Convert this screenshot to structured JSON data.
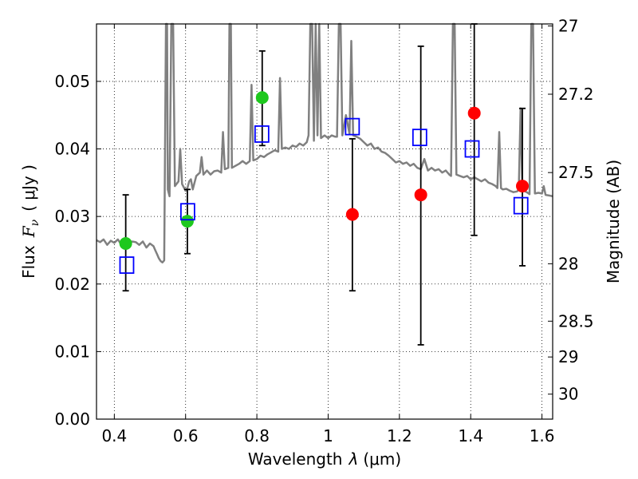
{
  "chart_data": {
    "type": "scatter",
    "title": "",
    "xlabel_parts": {
      "name": "Wavelength",
      "symbol": "λ",
      "unit": "(μm)"
    },
    "ylabel_parts": {
      "name": "Flux",
      "symbol": "F",
      "subscript": "ν",
      "unit": "( μJy )"
    },
    "y2label": "Magnitude (AB)",
    "xlim": [
      0.35,
      1.63
    ],
    "ylim": [
      0.0,
      0.0585
    ],
    "grid": true,
    "x_ticks": [
      {
        "value": 0.4,
        "label": "0.4"
      },
      {
        "value": 0.6,
        "label": "0.6"
      },
      {
        "value": 0.8,
        "label": "0.8"
      },
      {
        "value": 1.0,
        "label": "1"
      },
      {
        "value": 1.2,
        "label": "1.2"
      },
      {
        "value": 1.4,
        "label": "1.4"
      },
      {
        "value": 1.6,
        "label": "1.6"
      }
    ],
    "y_ticks": [
      {
        "value": 0.0,
        "label": "0.00"
      },
      {
        "value": 0.01,
        "label": "0.01"
      },
      {
        "value": 0.02,
        "label": "0.02"
      },
      {
        "value": 0.03,
        "label": "0.03"
      },
      {
        "value": 0.04,
        "label": "0.04"
      },
      {
        "value": 0.05,
        "label": "0.05"
      }
    ],
    "y2_ticks": [
      {
        "label": "27",
        "flux": 0.0582
      },
      {
        "label": "27.2",
        "flux": 0.0481
      },
      {
        "label": "27.5",
        "flux": 0.0365
      },
      {
        "label": "28",
        "flux": 0.023
      },
      {
        "label": "28.5",
        "flux": 0.0145
      },
      {
        "label": "29",
        "flux": 0.0092
      },
      {
        "label": "30",
        "flux": 0.0037
      }
    ],
    "series": [
      {
        "name": "model spectrum",
        "kind": "line",
        "color": "#808080",
        "points": [
          [
            0.35,
            0.0265
          ],
          [
            0.36,
            0.0262
          ],
          [
            0.37,
            0.0266
          ],
          [
            0.38,
            0.0258
          ],
          [
            0.39,
            0.0264
          ],
          [
            0.4,
            0.0261
          ],
          [
            0.41,
            0.0266
          ],
          [
            0.42,
            0.0258
          ],
          [
            0.43,
            0.0262
          ],
          [
            0.44,
            0.0259
          ],
          [
            0.45,
            0.0263
          ],
          [
            0.46,
            0.0262
          ],
          [
            0.47,
            0.0258
          ],
          [
            0.48,
            0.0263
          ],
          [
            0.49,
            0.0254
          ],
          [
            0.5,
            0.026
          ],
          [
            0.51,
            0.0256
          ],
          [
            0.515,
            0.025
          ],
          [
            0.52,
            0.0244
          ],
          [
            0.525,
            0.0238
          ],
          [
            0.53,
            0.0234
          ],
          [
            0.535,
            0.0232
          ],
          [
            0.54,
            0.0235
          ],
          [
            0.545,
            0.0585
          ],
          [
            0.548,
            0.0585
          ],
          [
            0.55,
            0.034
          ],
          [
            0.555,
            0.033
          ],
          [
            0.56,
            0.0585
          ],
          [
            0.565,
            0.0585
          ],
          [
            0.57,
            0.0345
          ],
          [
            0.58,
            0.0352
          ],
          [
            0.585,
            0.04
          ],
          [
            0.59,
            0.0348
          ],
          [
            0.6,
            0.0338
          ],
          [
            0.605,
            0.0342
          ],
          [
            0.61,
            0.0352
          ],
          [
            0.615,
            0.0355
          ],
          [
            0.62,
            0.034
          ],
          [
            0.63,
            0.036
          ],
          [
            0.64,
            0.0365
          ],
          [
            0.645,
            0.0388
          ],
          [
            0.65,
            0.0362
          ],
          [
            0.66,
            0.0368
          ],
          [
            0.67,
            0.0362
          ],
          [
            0.68,
            0.0367
          ],
          [
            0.69,
            0.0368
          ],
          [
            0.7,
            0.0365
          ],
          [
            0.705,
            0.0425
          ],
          [
            0.71,
            0.037
          ],
          [
            0.72,
            0.0372
          ],
          [
            0.723,
            0.0585
          ],
          [
            0.727,
            0.0585
          ],
          [
            0.73,
            0.0372
          ],
          [
            0.74,
            0.0375
          ],
          [
            0.75,
            0.0378
          ],
          [
            0.76,
            0.0382
          ],
          [
            0.77,
            0.0378
          ],
          [
            0.78,
            0.0382
          ],
          [
            0.785,
            0.0495
          ],
          [
            0.79,
            0.0383
          ],
          [
            0.8,
            0.0385
          ],
          [
            0.81,
            0.039
          ],
          [
            0.82,
            0.0388
          ],
          [
            0.83,
            0.0392
          ],
          [
            0.84,
            0.0395
          ],
          [
            0.85,
            0.0398
          ],
          [
            0.86,
            0.0396
          ],
          [
            0.865,
            0.0505
          ],
          [
            0.87,
            0.04
          ],
          [
            0.88,
            0.0402
          ],
          [
            0.89,
            0.04
          ],
          [
            0.9,
            0.0405
          ],
          [
            0.91,
            0.0403
          ],
          [
            0.92,
            0.0408
          ],
          [
            0.93,
            0.0405
          ],
          [
            0.94,
            0.041
          ],
          [
            0.945,
            0.042
          ],
          [
            0.95,
            0.0585
          ],
          [
            0.955,
            0.0585
          ],
          [
            0.96,
            0.0412
          ],
          [
            0.965,
            0.0585
          ],
          [
            0.97,
            0.042
          ],
          [
            0.975,
            0.0585
          ],
          [
            0.98,
            0.0416
          ],
          [
            0.99,
            0.042
          ],
          [
            1.0,
            0.0416
          ],
          [
            1.01,
            0.042
          ],
          [
            1.02,
            0.0418
          ],
          [
            1.025,
            0.0418
          ],
          [
            1.03,
            0.0585
          ],
          [
            1.035,
            0.0585
          ],
          [
            1.04,
            0.042
          ],
          [
            1.05,
            0.045
          ],
          [
            1.06,
            0.0422
          ],
          [
            1.065,
            0.056
          ],
          [
            1.07,
            0.042
          ],
          [
            1.08,
            0.0418
          ],
          [
            1.09,
            0.0415
          ],
          [
            1.1,
            0.041
          ],
          [
            1.11,
            0.0405
          ],
          [
            1.12,
            0.0408
          ],
          [
            1.13,
            0.04
          ],
          [
            1.14,
            0.0402
          ],
          [
            1.15,
            0.0396
          ],
          [
            1.16,
            0.0394
          ],
          [
            1.17,
            0.039
          ],
          [
            1.18,
            0.0385
          ],
          [
            1.19,
            0.038
          ],
          [
            1.2,
            0.0382
          ],
          [
            1.21,
            0.0378
          ],
          [
            1.22,
            0.038
          ],
          [
            1.23,
            0.0375
          ],
          [
            1.24,
            0.0378
          ],
          [
            1.25,
            0.0372
          ],
          [
            1.26,
            0.037
          ],
          [
            1.27,
            0.0385
          ],
          [
            1.28,
            0.0368
          ],
          [
            1.29,
            0.0372
          ],
          [
            1.3,
            0.0368
          ],
          [
            1.31,
            0.037
          ],
          [
            1.32,
            0.0365
          ],
          [
            1.33,
            0.0368
          ],
          [
            1.34,
            0.0362
          ],
          [
            1.345,
            0.036
          ],
          [
            1.35,
            0.0585
          ],
          [
            1.355,
            0.0585
          ],
          [
            1.36,
            0.0362
          ],
          [
            1.37,
            0.036
          ],
          [
            1.38,
            0.0358
          ],
          [
            1.39,
            0.036
          ],
          [
            1.4,
            0.0355
          ],
          [
            1.41,
            0.0358
          ],
          [
            1.42,
            0.0355
          ],
          [
            1.43,
            0.0352
          ],
          [
            1.44,
            0.0355
          ],
          [
            1.45,
            0.035
          ],
          [
            1.46,
            0.0348
          ],
          [
            1.47,
            0.0345
          ],
          [
            1.475,
            0.0342
          ],
          [
            1.48,
            0.0425
          ],
          [
            1.485,
            0.0342
          ],
          [
            1.49,
            0.034
          ],
          [
            1.5,
            0.0341
          ],
          [
            1.51,
            0.0338
          ],
          [
            1.52,
            0.0336
          ],
          [
            1.53,
            0.0337
          ],
          [
            1.535,
            0.034
          ],
          [
            1.54,
            0.046
          ],
          [
            1.545,
            0.034
          ],
          [
            1.55,
            0.0338
          ],
          [
            1.56,
            0.0335
          ],
          [
            1.565,
            0.0333
          ],
          [
            1.57,
            0.0585
          ],
          [
            1.575,
            0.0585
          ],
          [
            1.58,
            0.0334
          ],
          [
            1.59,
            0.0335
          ],
          [
            1.6,
            0.0334
          ],
          [
            1.605,
            0.0345
          ],
          [
            1.61,
            0.0332
          ],
          [
            1.62,
            0.0331
          ],
          [
            1.63,
            0.033
          ]
        ]
      },
      {
        "name": "green points",
        "kind": "circle",
        "color": "#1ec81e",
        "points": [
          [
            0.432,
            0.026
          ],
          [
            0.605,
            0.0293
          ],
          [
            0.815,
            0.0476
          ]
        ],
        "yerr": [
          [
            0.019,
            0.0332
          ],
          [
            0.0245,
            0.034
          ],
          [
            0.0405,
            0.0545
          ]
        ]
      },
      {
        "name": "red points",
        "kind": "circle",
        "color": "#ff0000",
        "points": [
          [
            1.068,
            0.0303
          ],
          [
            1.26,
            0.0332
          ],
          [
            1.41,
            0.0453
          ],
          [
            1.545,
            0.0345
          ]
        ],
        "yerr": [
          [
            0.019,
            0.0415
          ],
          [
            0.011,
            0.0552
          ],
          [
            0.0272,
            0.0585
          ],
          [
            0.0227,
            0.046
          ]
        ]
      },
      {
        "name": "model photometry",
        "kind": "square",
        "color": "#0000ff",
        "points": [
          [
            0.435,
            0.0228
          ],
          [
            0.606,
            0.0307
          ],
          [
            0.814,
            0.0422
          ],
          [
            1.068,
            0.0433
          ],
          [
            1.257,
            0.0417
          ],
          [
            1.404,
            0.04
          ],
          [
            1.541,
            0.0316
          ]
        ]
      }
    ]
  }
}
